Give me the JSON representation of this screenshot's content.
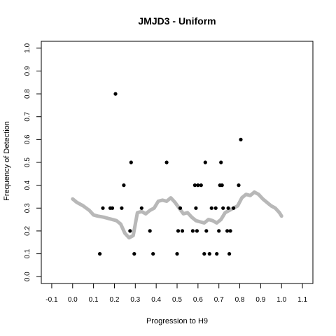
{
  "chart_data": {
    "type": "scatter",
    "title": "JMJD3 - Uniform",
    "xlabel": "Progression to H9",
    "ylabel": "Frequency of Detection",
    "xlim": [
      -0.15,
      1.15
    ],
    "ylim": [
      -0.03,
      1.03
    ],
    "x_ticks": [
      -0.1,
      0.0,
      0.1,
      0.2,
      0.3,
      0.4,
      0.5,
      0.6,
      0.7,
      0.8,
      0.9,
      1.0,
      1.1
    ],
    "x_tick_labels": [
      "-0.1",
      "0.0",
      "0.1",
      "0.2",
      "0.3",
      "0.4",
      "0.5",
      "0.6",
      "0.7",
      "0.8",
      "0.9",
      "1.0",
      "1.1"
    ],
    "y_ticks": [
      0.0,
      0.1,
      0.2,
      0.3,
      0.4,
      0.5,
      0.6,
      0.7,
      0.8,
      0.9,
      1.0
    ],
    "y_tick_labels": [
      "0.0",
      "0.1",
      "0.2",
      "0.3",
      "0.4",
      "0.5",
      "0.6",
      "0.7",
      "0.8",
      "0.9",
      "1.0"
    ],
    "grid": false,
    "colors": {
      "points": "#000000",
      "smooth": "#b8b8b8",
      "axes": "#000000"
    },
    "series": [
      {
        "kind": "points",
        "x": [
          0.13,
          0.145,
          0.18,
          0.19,
          0.205,
          0.235,
          0.245,
          0.275,
          0.28,
          0.295,
          0.33,
          0.37,
          0.385,
          0.45,
          0.5,
          0.505,
          0.515,
          0.525,
          0.575,
          0.585,
          0.59,
          0.595,
          0.6,
          0.615,
          0.63,
          0.635,
          0.64,
          0.655,
          0.665,
          0.685,
          0.69,
          0.7,
          0.705,
          0.71,
          0.715,
          0.72,
          0.74,
          0.745,
          0.75,
          0.755,
          0.77,
          0.795,
          0.805
        ],
        "y": [
          0.1,
          0.3,
          0.3,
          0.3,
          0.8,
          0.3,
          0.4,
          0.2,
          0.5,
          0.1,
          0.3,
          0.2,
          0.1,
          0.5,
          0.1,
          0.2,
          0.3,
          0.2,
          0.2,
          0.4,
          0.3,
          0.2,
          0.4,
          0.4,
          0.1,
          0.5,
          0.2,
          0.1,
          0.3,
          0.3,
          0.1,
          0.2,
          0.4,
          0.5,
          0.4,
          0.3,
          0.2,
          0.3,
          0.1,
          0.2,
          0.3,
          0.4,
          0.6
        ]
      },
      {
        "kind": "smooth",
        "x": [
          0.0,
          0.02,
          0.05,
          0.08,
          0.1,
          0.12,
          0.15,
          0.17,
          0.19,
          0.21,
          0.23,
          0.25,
          0.27,
          0.29,
          0.31,
          0.33,
          0.35,
          0.37,
          0.39,
          0.41,
          0.43,
          0.45,
          0.47,
          0.49,
          0.51,
          0.53,
          0.55,
          0.57,
          0.59,
          0.61,
          0.63,
          0.65,
          0.67,
          0.69,
          0.71,
          0.73,
          0.75,
          0.77,
          0.79,
          0.81,
          0.83,
          0.85,
          0.87,
          0.89,
          0.91,
          0.93,
          0.95,
          0.97,
          0.99,
          1.0
        ],
        "y": [
          0.34,
          0.325,
          0.31,
          0.29,
          0.27,
          0.265,
          0.26,
          0.255,
          0.25,
          0.245,
          0.23,
          0.19,
          0.17,
          0.18,
          0.28,
          0.285,
          0.275,
          0.29,
          0.3,
          0.33,
          0.335,
          0.33,
          0.345,
          0.325,
          0.3,
          0.275,
          0.28,
          0.26,
          0.245,
          0.24,
          0.235,
          0.25,
          0.245,
          0.235,
          0.25,
          0.28,
          0.29,
          0.3,
          0.31,
          0.345,
          0.36,
          0.355,
          0.37,
          0.36,
          0.34,
          0.325,
          0.31,
          0.3,
          0.28,
          0.265
        ]
      }
    ]
  }
}
